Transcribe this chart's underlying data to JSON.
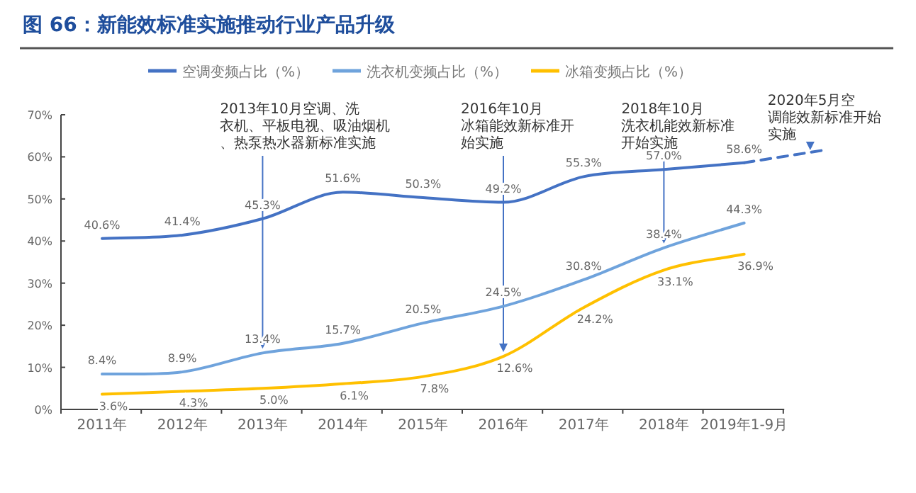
{
  "chart_data": {
    "type": "line",
    "title": "图 66：新能效标准实施推动行业产品升级",
    "categories": [
      "2011年",
      "2012年",
      "2013年",
      "2014年",
      "2015年",
      "2016年",
      "2017年",
      "2018年",
      "2019年1-9月",
      null
    ],
    "series": [
      {
        "name": "空调变频占比（%）",
        "color": "#4472c4",
        "values": [
          40.6,
          41.4,
          45.3,
          51.6,
          50.3,
          49.2,
          55.3,
          57.0,
          58.6,
          null
        ],
        "value_labels": [
          "40.6%",
          "41.4%",
          "45.3%",
          "51.6%",
          "50.3%",
          "49.2%",
          "55.3%",
          "57.0%",
          "58.6%",
          null
        ]
      },
      {
        "name": "洗衣机变频占比（%）",
        "color": "#6fa3dc",
        "values": [
          8.4,
          8.9,
          13.4,
          15.7,
          20.5,
          24.5,
          30.8,
          38.4,
          44.3,
          null
        ],
        "value_labels": [
          "8.4%",
          "8.9%",
          "13.4%",
          "15.7%",
          "20.5%",
          "24.5%",
          "30.8%",
          "38.4%",
          "44.3%",
          null
        ]
      },
      {
        "name": "冰箱变频占比（%）",
        "color": "#ffc000",
        "values": [
          3.6,
          4.3,
          5.0,
          6.1,
          7.8,
          12.6,
          24.2,
          33.1,
          36.9,
          null
        ],
        "value_labels": [
          "3.6%",
          "4.3%",
          "5.0%",
          "6.1%",
          "7.8%",
          "12.6%",
          "24.2%",
          "33.1%",
          "36.9%",
          null
        ]
      },
      {
        "color": "#4472c4",
        "line_style": "dashed",
        "values": [
          null,
          null,
          null,
          null,
          null,
          null,
          null,
          null,
          58.6,
          61.6
        ]
      }
    ],
    "ylim": [
      0,
      70
    ],
    "yticks": [
      {
        "value": 0,
        "label": "0%"
      },
      {
        "value": 10,
        "label": "10%"
      },
      {
        "value": 20,
        "label": "20%"
      },
      {
        "value": 30,
        "label": "30%"
      },
      {
        "value": 40,
        "label": "40%"
      },
      {
        "value": 50,
        "label": "50%"
      },
      {
        "value": 60,
        "label": "60%"
      },
      {
        "value": 70,
        "label": "70%"
      }
    ],
    "legend": "top",
    "marker": "none",
    "annotations": [
      {
        "text": "2013年10月空调、洗衣机、平板电视、吸油烟机、热泵热水器新标准实施",
        "x": "2013年",
        "y": 13.4
      },
      {
        "text": "2016年10月冰箱能效新标准开始实施",
        "x": "2016年",
        "y": 12.6
      },
      {
        "text": "2018年10月洗衣机能效新标准开始实施",
        "x": "2018年",
        "y": 38.4
      },
      "2020年5月空调能效新标准开始实施"
    ]
  }
}
